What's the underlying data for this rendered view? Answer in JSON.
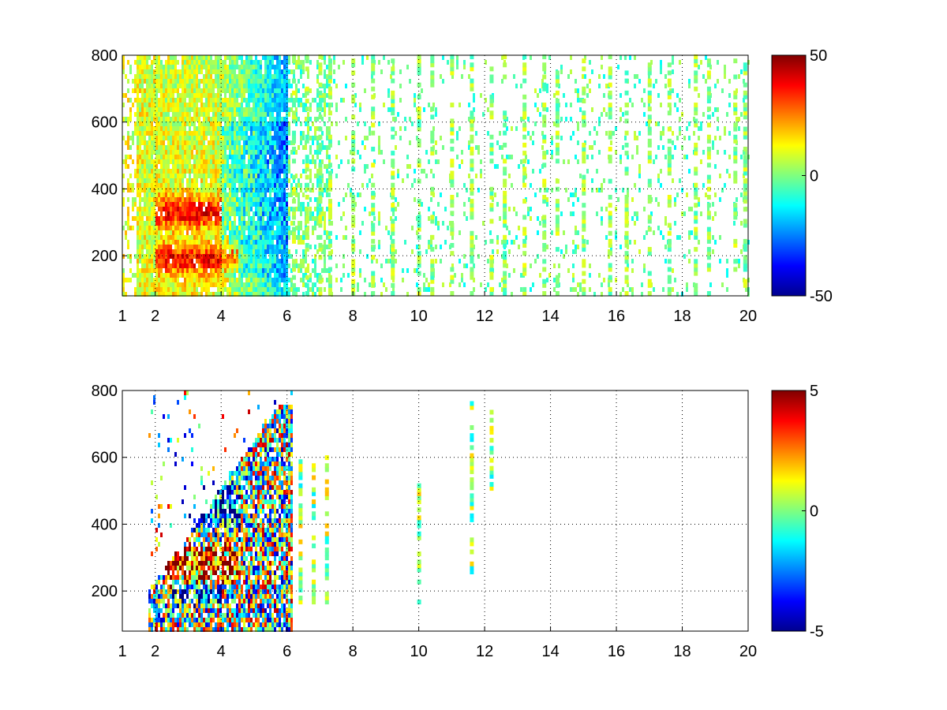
{
  "chart_data": [
    {
      "type": "heatmap",
      "title": "",
      "xlabel": "",
      "ylabel": "",
      "xlim": [
        1,
        20
      ],
      "ylim": [
        80,
        800
      ],
      "x_ticks": [
        1,
        2,
        4,
        6,
        8,
        10,
        12,
        14,
        16,
        18,
        20
      ],
      "x_tick_labels": [
        "1",
        "2",
        "4",
        "6",
        "8",
        "10",
        "12",
        "14",
        "16",
        "18",
        "20"
      ],
      "y_ticks": [
        200,
        400,
        600,
        800
      ],
      "y_tick_labels": [
        "200",
        "400",
        "600",
        "800"
      ],
      "grid": true,
      "colormap": "jet",
      "clim": [
        -50,
        50
      ],
      "colorbar_ticks": [
        50,
        0,
        -50
      ],
      "colorbar_tick_labels": [
        "50",
        "0",
        "-50"
      ],
      "description_of_field": {
        "dense_region_x": [
          1.5,
          6
        ],
        "positive_bands": [
          {
            "x": [
              2,
              4
            ],
            "y": 330
          },
          {
            "x": [
              2,
              4
            ],
            "y": 190
          }
        ],
        "negative_region": {
          "x": [
            4,
            6
          ],
          "y": [
            150,
            600
          ]
        },
        "sparse_region_x": [
          6,
          20
        ]
      }
    },
    {
      "type": "heatmap",
      "title": "",
      "xlabel": "",
      "ylabel": "",
      "xlim": [
        1,
        20
      ],
      "ylim": [
        80,
        800
      ],
      "x_ticks": [
        1,
        2,
        4,
        6,
        8,
        10,
        12,
        14,
        16,
        18,
        20
      ],
      "x_tick_labels": [
        "1",
        "2",
        "4",
        "6",
        "8",
        "10",
        "12",
        "14",
        "16",
        "18",
        "20"
      ],
      "y_ticks": [
        200,
        400,
        600,
        800
      ],
      "y_tick_labels": [
        "200",
        "400",
        "600",
        "800"
      ],
      "grid": true,
      "colormap": "jet",
      "clim": [
        -5,
        5
      ],
      "colorbar_ticks": [
        5,
        0,
        -5
      ],
      "colorbar_tick_labels": [
        "5",
        "0",
        "-5"
      ],
      "description_of_field": {
        "dense_region_x": [
          1.8,
          6
        ],
        "positive_band": {
          "x": [
            2.3,
            4.5
          ],
          "y": 280
        },
        "negative_band": {
          "x": [
            2.5,
            4.5
          ],
          "y": 450
        },
        "isolated_columns_x": [
          6.4,
          7.2,
          10,
          11.6,
          12.2
        ]
      }
    }
  ]
}
